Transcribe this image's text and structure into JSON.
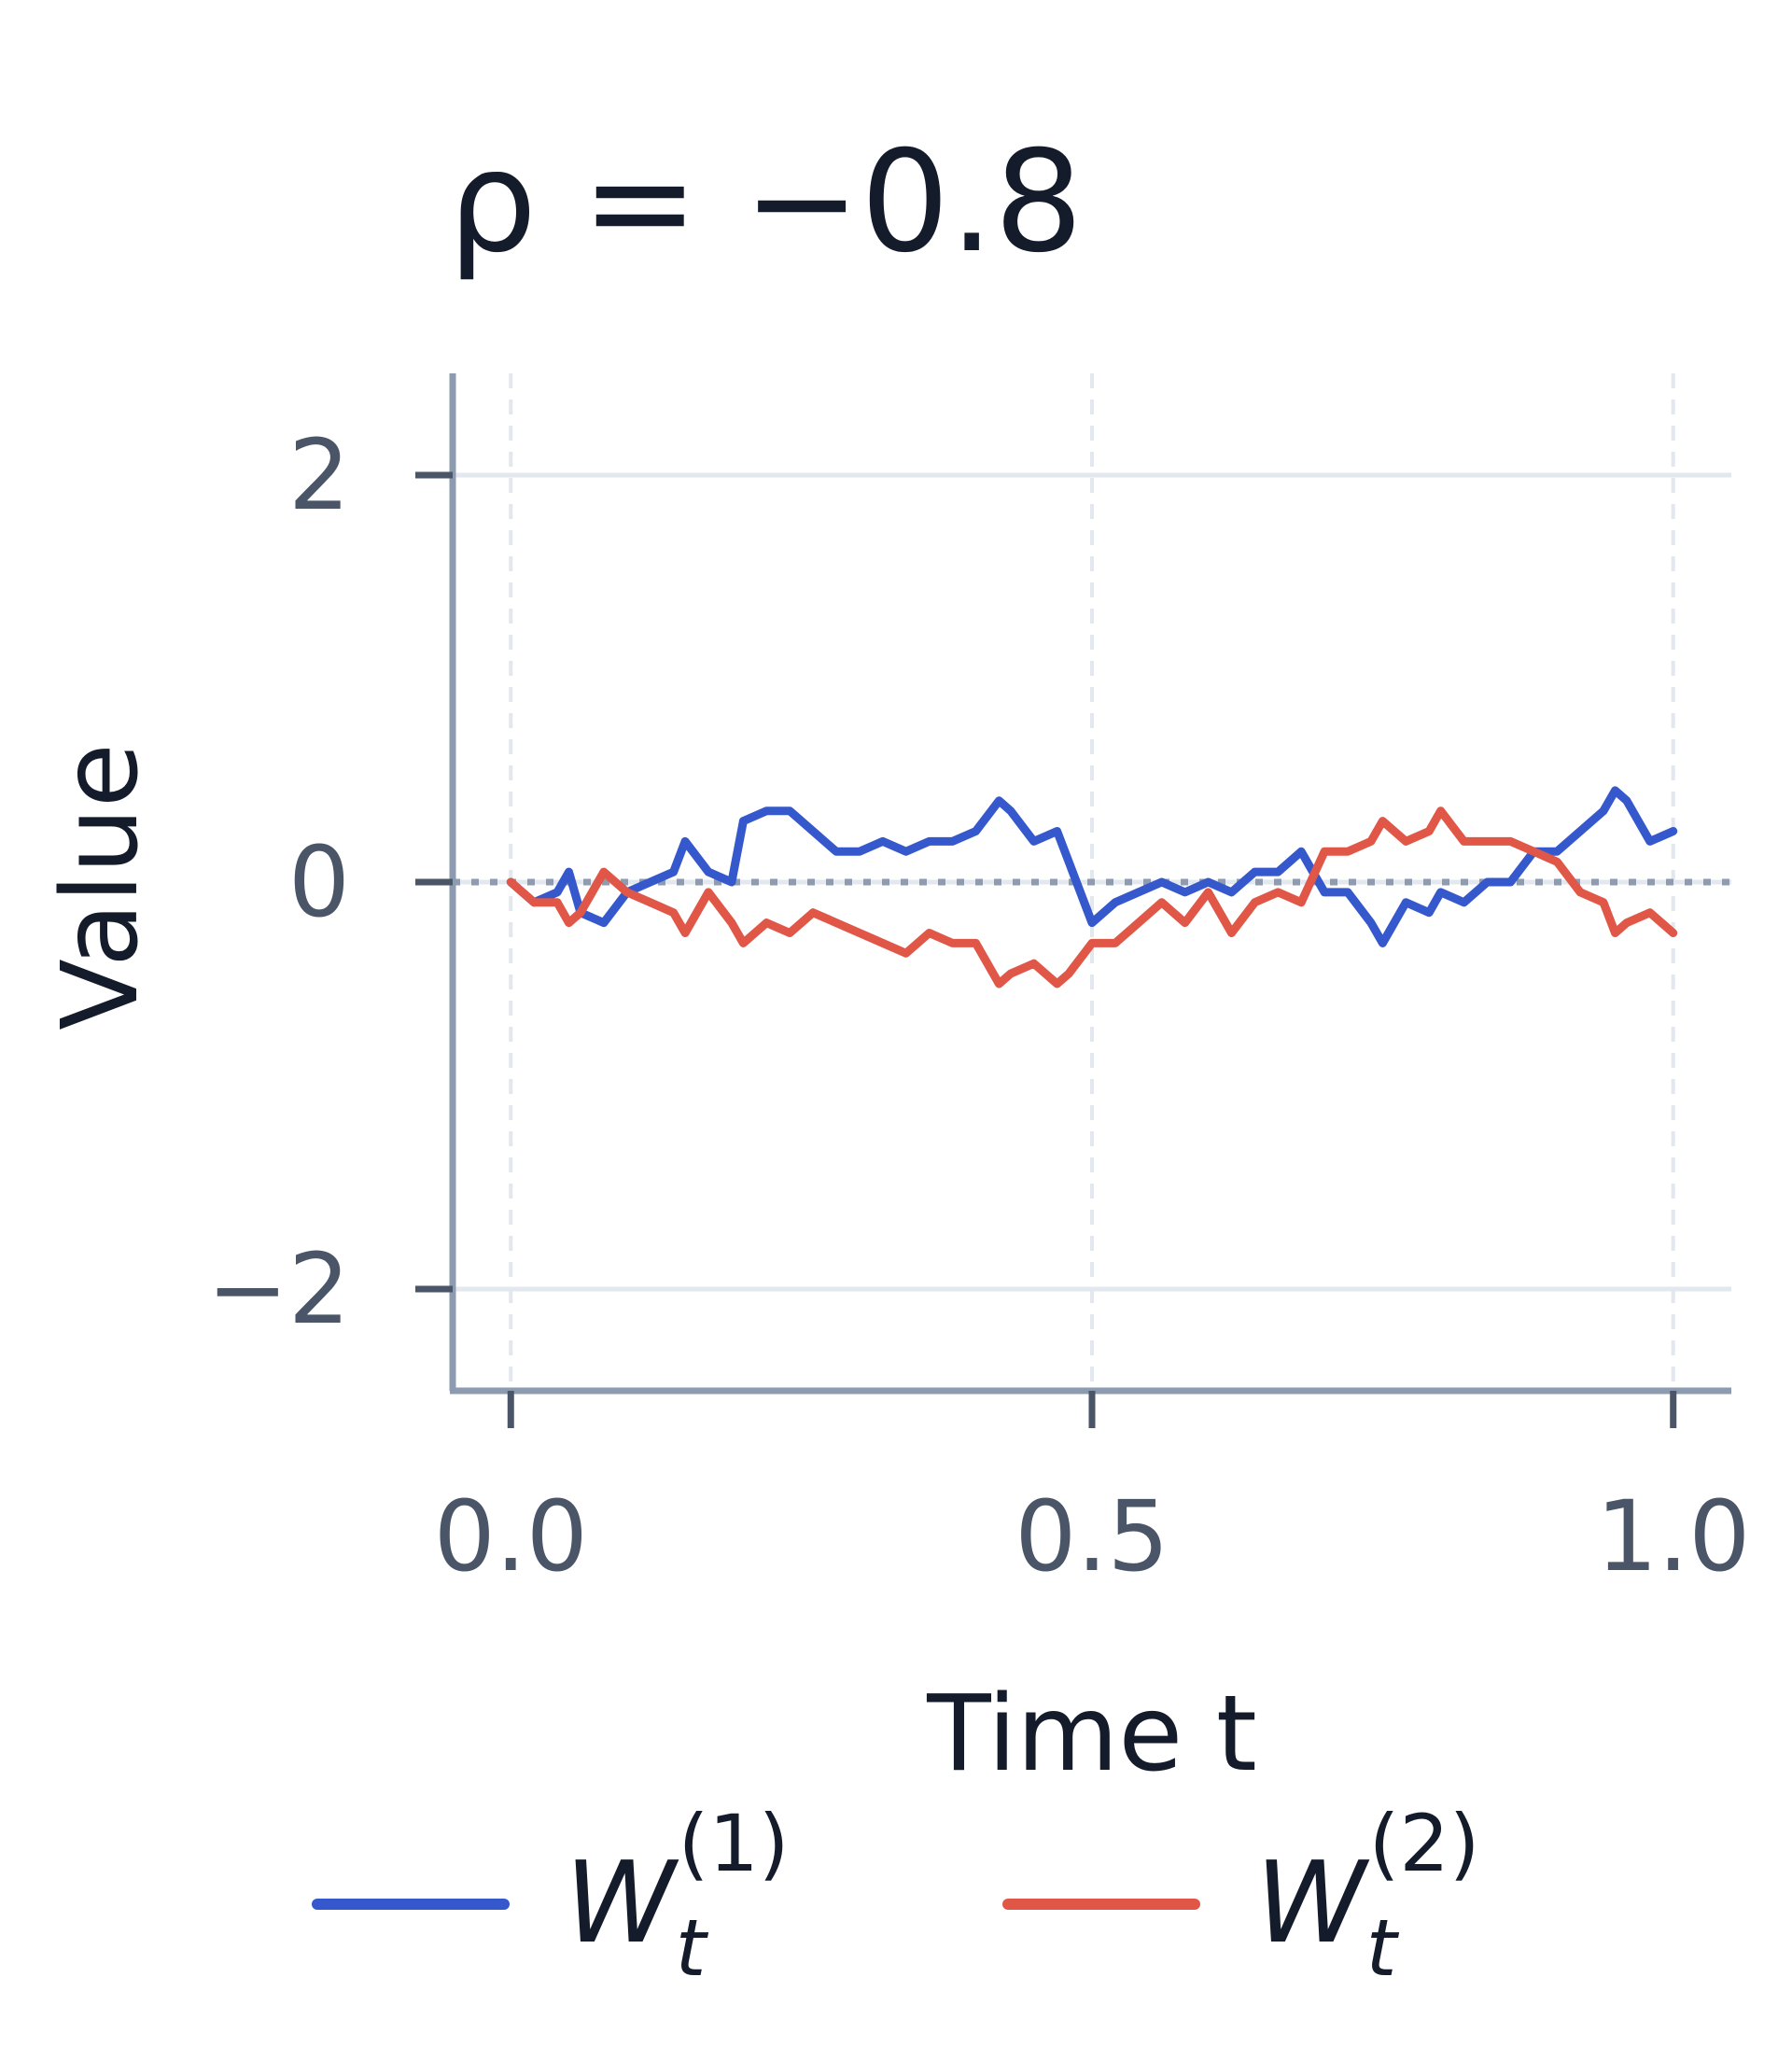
{
  "chart_data": {
    "type": "line",
    "title": "ρ = −0.8",
    "xlabel": "Time t",
    "ylabel": "Value",
    "xlim": [
      -0.05,
      1.05
    ],
    "ylim": [
      -2.5,
      2.5
    ],
    "xticks": [
      0.0,
      0.5,
      1.0
    ],
    "xtick_labels": [
      "0.0",
      "0.5",
      "1.0"
    ],
    "yticks": [
      -2,
      0,
      2
    ],
    "ytick_labels": [
      "−2",
      "0",
      "2"
    ],
    "grid": true,
    "zero_line": true,
    "legend_position": "bottom",
    "series": [
      {
        "name": "W_t^(1)",
        "name_main": "W",
        "name_sub": "t",
        "name_sup": "(1)",
        "color": "#3558cc",
        "x": [
          0.0,
          0.02,
          0.04,
          0.05,
          0.06,
          0.08,
          0.1,
          0.12,
          0.14,
          0.15,
          0.17,
          0.19,
          0.2,
          0.22,
          0.24,
          0.26,
          0.28,
          0.3,
          0.32,
          0.34,
          0.36,
          0.38,
          0.4,
          0.42,
          0.43,
          0.45,
          0.47,
          0.48,
          0.5,
          0.52,
          0.54,
          0.56,
          0.58,
          0.6,
          0.62,
          0.64,
          0.66,
          0.68,
          0.7,
          0.72,
          0.74,
          0.75,
          0.77,
          0.79,
          0.8,
          0.82,
          0.84,
          0.86,
          0.88,
          0.9,
          0.92,
          0.94,
          0.95,
          0.96,
          0.98,
          1.0
        ],
        "y": [
          0.0,
          -0.1,
          -0.05,
          0.05,
          -0.15,
          -0.2,
          -0.05,
          0.0,
          0.05,
          0.2,
          0.05,
          0.0,
          0.3,
          0.35,
          0.35,
          0.25,
          0.15,
          0.15,
          0.2,
          0.15,
          0.2,
          0.2,
          0.25,
          0.4,
          0.35,
          0.2,
          0.25,
          0.1,
          -0.2,
          -0.1,
          -0.05,
          0.0,
          -0.05,
          0.0,
          -0.05,
          0.05,
          0.05,
          0.15,
          -0.05,
          -0.05,
          -0.2,
          -0.3,
          -0.1,
          -0.15,
          -0.05,
          -0.1,
          0.0,
          0.0,
          0.15,
          0.15,
          0.25,
          0.35,
          0.45,
          0.4,
          0.2,
          0.25
        ]
      },
      {
        "name": "W_t^(2)",
        "name_main": "W",
        "name_sub": "t",
        "name_sup": "(2)",
        "color": "#e05748",
        "x": [
          0.0,
          0.02,
          0.04,
          0.05,
          0.06,
          0.08,
          0.1,
          0.12,
          0.14,
          0.15,
          0.17,
          0.19,
          0.2,
          0.22,
          0.24,
          0.26,
          0.28,
          0.3,
          0.32,
          0.34,
          0.36,
          0.38,
          0.4,
          0.42,
          0.43,
          0.45,
          0.47,
          0.48,
          0.5,
          0.52,
          0.54,
          0.56,
          0.58,
          0.6,
          0.62,
          0.64,
          0.66,
          0.68,
          0.7,
          0.72,
          0.74,
          0.75,
          0.77,
          0.79,
          0.8,
          0.82,
          0.84,
          0.86,
          0.88,
          0.9,
          0.92,
          0.94,
          0.95,
          0.96,
          0.98,
          1.0
        ],
        "y": [
          0.0,
          -0.1,
          -0.1,
          -0.2,
          -0.15,
          0.05,
          -0.05,
          -0.1,
          -0.15,
          -0.25,
          -0.05,
          -0.2,
          -0.3,
          -0.2,
          -0.25,
          -0.15,
          -0.2,
          -0.25,
          -0.3,
          -0.35,
          -0.25,
          -0.3,
          -0.3,
          -0.5,
          -0.45,
          -0.4,
          -0.5,
          -0.45,
          -0.3,
          -0.3,
          -0.2,
          -0.1,
          -0.2,
          -0.05,
          -0.25,
          -0.1,
          -0.05,
          -0.1,
          0.15,
          0.15,
          0.2,
          0.3,
          0.2,
          0.25,
          0.35,
          0.2,
          0.2,
          0.2,
          0.15,
          0.1,
          -0.05,
          -0.1,
          -0.25,
          -0.2,
          -0.15,
          -0.25
        ]
      }
    ]
  }
}
